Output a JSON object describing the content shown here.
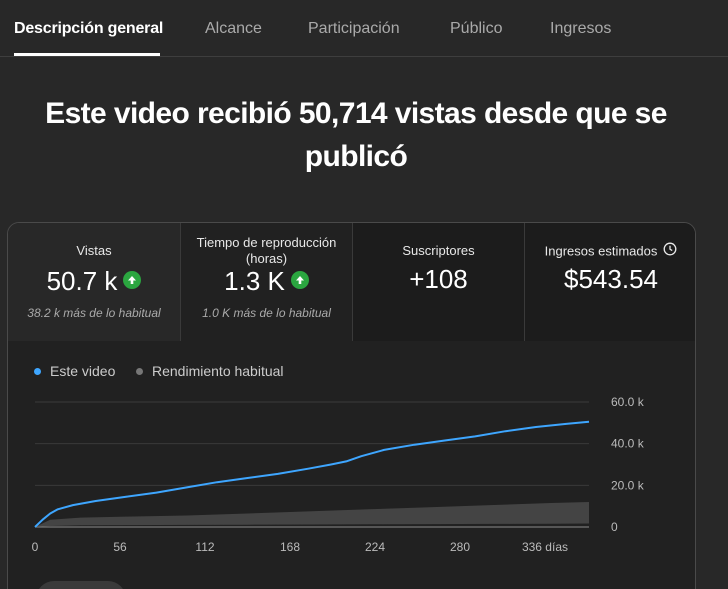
{
  "tabs": [
    {
      "label": "Descripción general",
      "active": true
    },
    {
      "label": "Alcance"
    },
    {
      "label": "Participación"
    },
    {
      "label": "Público"
    },
    {
      "label": "Ingresos"
    }
  ],
  "headline": {
    "line1": "Este video recibió 50,714 vistas desde que se",
    "line2": "publicó"
  },
  "metrics": [
    {
      "label": "Vistas",
      "value": "50.7 k",
      "trend": "up",
      "sub": "38.2 k más de lo habitual"
    },
    {
      "label_line1": "Tiempo de reproducción",
      "label_line2": "(horas)",
      "value": "1.3 K",
      "trend": "up",
      "sub": "1.0 K más de lo habitual"
    },
    {
      "label": "Suscriptores",
      "value": "+108"
    },
    {
      "label": "Ingresos estimados",
      "value": "$543.54",
      "icon": "clock-icon"
    }
  ],
  "colors": {
    "this_video": "#3ea6ff",
    "typical": "#606060",
    "trend_up": "#2ba640"
  },
  "chart_data": {
    "type": "line",
    "legend": [
      "Este video",
      "Rendimiento habitual"
    ],
    "legend_position": "top-left",
    "x_ticks": [
      "0",
      "56",
      "112",
      "168",
      "224",
      "280",
      "336 días"
    ],
    "y_ticks": [
      "0",
      "20.0 k",
      "40.0 k",
      "60.0 k"
    ],
    "xlim": [
      0,
      365
    ],
    "ylim": [
      0,
      60000
    ],
    "series": [
      {
        "name": "Este video",
        "x": [
          0,
          5,
          10,
          15,
          25,
          40,
          60,
          80,
          100,
          120,
          140,
          160,
          180,
          195,
          205,
          215,
          230,
          250,
          270,
          290,
          310,
          330,
          350,
          365
        ],
        "y": [
          0,
          3500,
          6500,
          8500,
          10500,
          12500,
          14500,
          16500,
          19000,
          21500,
          23500,
          25500,
          28000,
          30000,
          31500,
          34000,
          37000,
          39500,
          41500,
          43500,
          46000,
          48000,
          49500,
          50500
        ]
      },
      {
        "name": "Rendimiento habitual",
        "type": "band",
        "x": [
          0,
          10,
          30,
          60,
          100,
          140,
          180,
          220,
          260,
          300,
          340,
          365
        ],
        "lower": [
          0,
          500,
          800,
          900,
          1000,
          1100,
          1200,
          1300,
          1400,
          1500,
          1600,
          1700
        ],
        "upper": [
          0,
          3500,
          4500,
          5000,
          5500,
          6500,
          7500,
          8500,
          9500,
          10500,
          11500,
          12000
        ]
      }
    ]
  }
}
